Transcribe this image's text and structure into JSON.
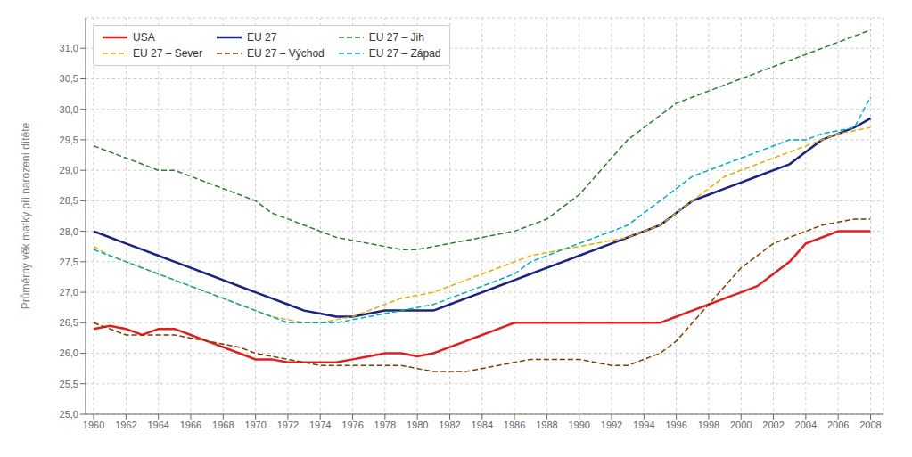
{
  "chart_data": {
    "type": "line",
    "ylabel": "Průměrný věk matky při narození dítěte",
    "x": [
      1960,
      1961,
      1962,
      1963,
      1964,
      1965,
      1966,
      1967,
      1968,
      1969,
      1970,
      1971,
      1972,
      1973,
      1974,
      1975,
      1976,
      1977,
      1978,
      1979,
      1980,
      1981,
      1982,
      1983,
      1984,
      1985,
      1986,
      1987,
      1988,
      1989,
      1990,
      1991,
      1992,
      1993,
      1994,
      1995,
      1996,
      1997,
      1998,
      1999,
      2000,
      2001,
      2002,
      2003,
      2004,
      2005,
      2006,
      2007,
      2008
    ],
    "series": [
      {
        "name": "USA",
        "color": "#e02020",
        "line_style": "solid",
        "values": [
          26.4,
          26.45,
          26.4,
          26.3,
          26.4,
          26.4,
          26.3,
          26.2,
          26.1,
          26.0,
          25.9,
          25.9,
          25.85,
          25.85,
          25.85,
          25.85,
          25.9,
          25.95,
          26.0,
          26.0,
          25.95,
          26.0,
          26.1,
          26.2,
          26.3,
          26.4,
          26.5,
          26.5,
          26.5,
          26.5,
          26.5,
          26.5,
          26.5,
          26.5,
          26.5,
          26.5,
          26.6,
          26.7,
          26.8,
          26.9,
          27.0,
          27.1,
          27.3,
          27.5,
          27.8,
          27.9,
          28.0,
          28.0,
          28.0
        ]
      },
      {
        "name": "EU 27",
        "color": "#1a237e",
        "line_style": "solid",
        "values": [
          28.0,
          27.9,
          27.8,
          27.7,
          27.6,
          27.5,
          27.4,
          27.3,
          27.2,
          27.1,
          27.0,
          26.9,
          26.8,
          26.7,
          26.65,
          26.6,
          26.6,
          26.65,
          26.7,
          26.7,
          26.7,
          26.7,
          26.8,
          26.9,
          27.0,
          27.1,
          27.2,
          27.3,
          27.4,
          27.5,
          27.6,
          27.7,
          27.8,
          27.9,
          28.0,
          28.1,
          28.3,
          28.5,
          28.6,
          28.7,
          28.8,
          28.9,
          29.0,
          29.1,
          29.3,
          29.5,
          29.6,
          29.7,
          29.85
        ]
      },
      {
        "name": "EU 27 – Jih",
        "color": "#2e7d32",
        "line_style": "dashed",
        "values": [
          29.4,
          29.3,
          29.2,
          29.1,
          29.0,
          29.0,
          28.9,
          28.8,
          28.7,
          28.6,
          28.5,
          28.3,
          28.2,
          28.1,
          28.0,
          27.9,
          27.85,
          27.8,
          27.75,
          27.7,
          27.7,
          27.75,
          27.8,
          27.85,
          27.9,
          27.95,
          28.0,
          28.1,
          28.2,
          28.4,
          28.6,
          28.9,
          29.2,
          29.5,
          29.7,
          29.9,
          30.1,
          30.2,
          30.3,
          30.4,
          30.5,
          30.6,
          30.7,
          30.8,
          30.9,
          31.0,
          31.1,
          31.2,
          31.3
        ]
      },
      {
        "name": "EU 27 – Sever",
        "color": "#e6ac00",
        "line_style": "dashed",
        "values": [
          27.75,
          27.6,
          27.5,
          27.4,
          27.3,
          27.2,
          27.1,
          27.0,
          26.9,
          26.8,
          26.7,
          26.6,
          26.55,
          26.5,
          26.5,
          26.55,
          26.6,
          26.7,
          26.8,
          26.9,
          26.95,
          27.0,
          27.1,
          27.2,
          27.3,
          27.4,
          27.5,
          27.6,
          27.65,
          27.7,
          27.75,
          27.8,
          27.85,
          27.9,
          28.0,
          28.1,
          28.3,
          28.5,
          28.7,
          28.9,
          29.0,
          29.1,
          29.2,
          29.3,
          29.4,
          29.5,
          29.6,
          29.65,
          29.7
        ]
      },
      {
        "name": "EU 27 – Východ",
        "color": "#7b3f00",
        "line_style": "dashed",
        "values": [
          26.5,
          26.4,
          26.3,
          26.3,
          26.3,
          26.3,
          26.25,
          26.2,
          26.15,
          26.1,
          26.0,
          25.95,
          25.9,
          25.85,
          25.8,
          25.8,
          25.8,
          25.8,
          25.8,
          25.8,
          25.75,
          25.7,
          25.7,
          25.7,
          25.75,
          25.8,
          25.85,
          25.9,
          25.9,
          25.9,
          25.9,
          25.85,
          25.8,
          25.8,
          25.9,
          26.0,
          26.2,
          26.5,
          26.8,
          27.1,
          27.4,
          27.6,
          27.8,
          27.9,
          28.0,
          28.1,
          28.15,
          28.2,
          28.2
        ]
      },
      {
        "name": "EU 27 – Západ",
        "color": "#00acc1",
        "line_style": "dashed",
        "values": [
          27.7,
          27.6,
          27.5,
          27.4,
          27.3,
          27.2,
          27.1,
          27.0,
          26.9,
          26.8,
          26.7,
          26.6,
          26.5,
          26.5,
          26.5,
          26.5,
          26.55,
          26.6,
          26.65,
          26.7,
          26.75,
          26.8,
          26.9,
          27.0,
          27.1,
          27.2,
          27.3,
          27.5,
          27.6,
          27.7,
          27.8,
          27.9,
          28.0,
          28.1,
          28.3,
          28.5,
          28.7,
          28.9,
          29.0,
          29.1,
          29.2,
          29.3,
          29.4,
          29.5,
          29.5,
          29.6,
          29.65,
          29.7,
          30.2
        ]
      }
    ],
    "xlim": [
      1959.5,
      2008.8
    ],
    "xticks": [
      1960,
      1962,
      1964,
      1966,
      1968,
      1970,
      1972,
      1974,
      1976,
      1978,
      1980,
      1982,
      1984,
      1986,
      1988,
      1990,
      1992,
      1994,
      1996,
      1998,
      2000,
      2002,
      2004,
      2006,
      2008
    ],
    "ylim": [
      25.0,
      31.5
    ],
    "yticks": [
      {
        "value": 25.0,
        "label": "25,0"
      },
      {
        "value": 25.5,
        "label": "25,5"
      },
      {
        "value": 26.0,
        "label": "26,0"
      },
      {
        "value": 26.5,
        "label": "26,5"
      },
      {
        "value": 27.0,
        "label": "27,0"
      },
      {
        "value": 27.5,
        "label": "27,5"
      },
      {
        "value": 28.0,
        "label": "28,0"
      },
      {
        "value": 28.5,
        "label": "28,5"
      },
      {
        "value": 29.0,
        "label": "29,0"
      },
      {
        "value": 29.5,
        "label": "29,5"
      },
      {
        "value": 30.0,
        "label": "30,0"
      },
      {
        "value": 30.5,
        "label": "30,5"
      },
      {
        "value": 31.0,
        "label": "31,0"
      }
    ],
    "grid": true,
    "legend": "upper left"
  }
}
